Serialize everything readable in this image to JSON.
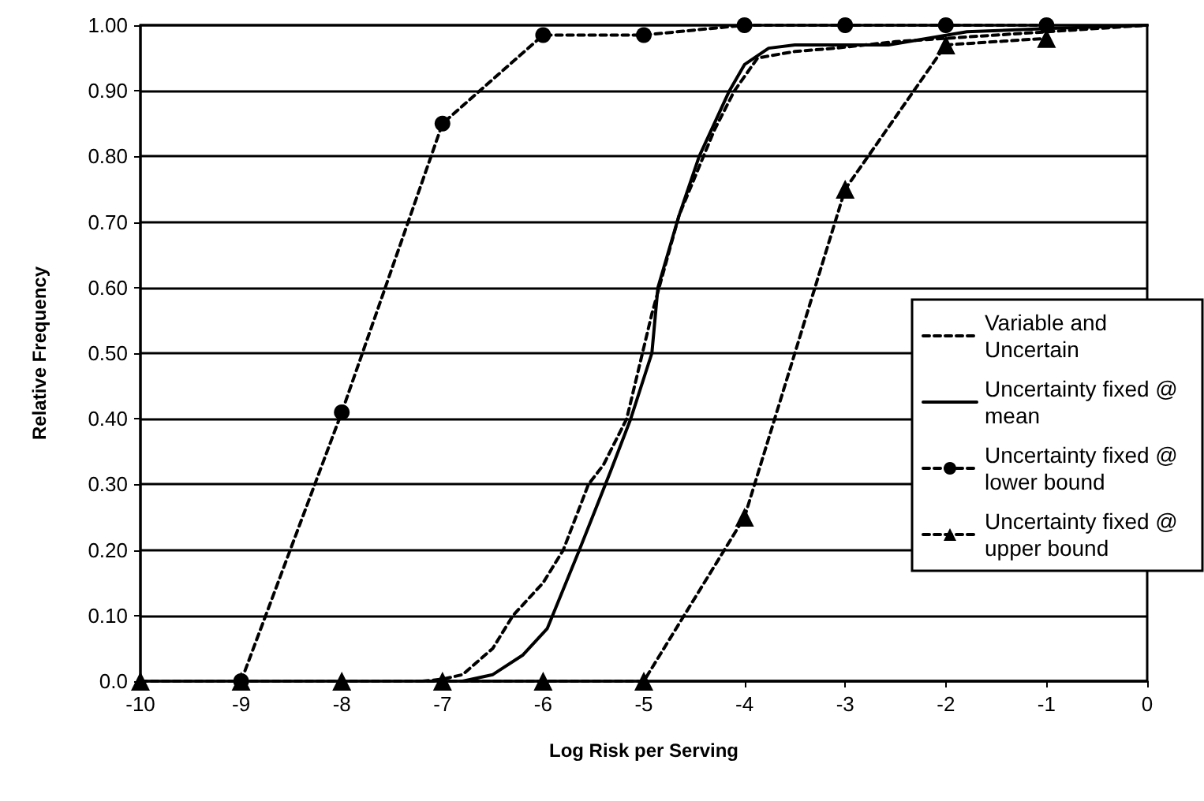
{
  "chart_data": {
    "type": "line",
    "xlabel": "Log Risk per Serving",
    "ylabel": "Relative Frequency",
    "xlim": [
      -10,
      0
    ],
    "xticks": [
      -10,
      -9,
      -8,
      -7,
      -6,
      -5,
      -4,
      -3,
      -2,
      -1,
      0
    ],
    "ylim": [
      0,
      1
    ],
    "yticks": [
      {
        "value": 0,
        "label": "0.0"
      },
      {
        "value": 0.1,
        "label": "0.10"
      },
      {
        "value": 0.2,
        "label": "0.20"
      },
      {
        "value": 0.3,
        "label": "0.30"
      },
      {
        "value": 0.4,
        "label": "0.40"
      },
      {
        "value": 0.5,
        "label": "0.50"
      },
      {
        "value": 0.6,
        "label": "0.60"
      },
      {
        "value": 0.7,
        "label": "0.70"
      },
      {
        "value": 0.8,
        "label": "0.80"
      },
      {
        "value": 0.9,
        "label": "0.90"
      },
      {
        "value": 1,
        "label": "1.00"
      }
    ],
    "grid": "y",
    "legend": "right",
    "series": [
      {
        "name": "Variable and Uncertain",
        "color": "#000000",
        "line_style": "dashed",
        "marker": "none",
        "x": [
          -7.2,
          -7,
          -6.8,
          -6.5,
          -6.3,
          -6,
          -5.8,
          -5.55,
          -5.4,
          -5.17,
          -4.92,
          -4.65,
          -4.3,
          -4.1,
          -3.87,
          -3.5,
          -3.1,
          -2.5,
          -2,
          -1.5,
          -1,
          0
        ],
        "values": [
          0,
          0.003,
          0.01,
          0.05,
          0.1,
          0.15,
          0.2,
          0.3,
          0.33,
          0.4,
          0.56,
          0.71,
          0.84,
          0.9,
          0.95,
          0.96,
          0.965,
          0.975,
          0.98,
          0.985,
          0.99,
          1
        ]
      },
      {
        "name": "Uncertainty fixed @ mean",
        "color": "#000000",
        "line_style": "solid",
        "marker": "none",
        "x": [
          -6.8,
          -6.5,
          -6.2,
          -5.96,
          -5.64,
          -5.33,
          -5.13,
          -4.92,
          -4.86,
          -4.65,
          -4.45,
          -4.15,
          -4,
          -3.76,
          -3.5,
          -3,
          -2.57,
          -1.79,
          -1,
          0
        ],
        "values": [
          0,
          0.01,
          0.04,
          0.08,
          0.2,
          0.32,
          0.4,
          0.5,
          0.6,
          0.71,
          0.8,
          0.9,
          0.94,
          0.965,
          0.97,
          0.97,
          0.97,
          0.99,
          0.995,
          1
        ]
      },
      {
        "name": "Uncertainty fixed @ lower bound",
        "color": "#000000",
        "line_style": "dashed",
        "marker": "circle",
        "x": [
          -9,
          -8,
          -7,
          -6,
          -5,
          -4,
          -3,
          -2,
          -1
        ],
        "values": [
          0,
          0.41,
          0.85,
          0.985,
          0.985,
          1,
          1,
          1,
          1
        ]
      },
      {
        "name": "Uncertainty fixed @ upper bound",
        "color": "#000000",
        "line_style": "dashed",
        "marker": "triangle",
        "x": [
          -10,
          -9,
          -8,
          -7,
          -6,
          -5,
          -4,
          -3,
          -2,
          -1
        ],
        "values": [
          0,
          0,
          0,
          0,
          0,
          0,
          0.25,
          0.75,
          0.97,
          0.98
        ]
      }
    ]
  }
}
